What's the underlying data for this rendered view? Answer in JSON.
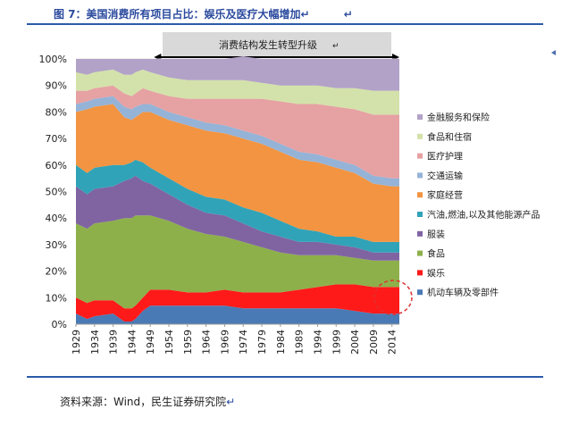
{
  "header": {
    "title": "图 7：美国消费所有项目占比：娱乐及医疗大幅增加",
    "mark1": "↵",
    "mark2": "↵"
  },
  "annotation": {
    "text": "消费结构发生转型升级",
    "mark": "↵",
    "span_from": 1950,
    "span_to": 2016
  },
  "source": {
    "text": "资料来源：Wind，民生证券研究院",
    "mark": "↵"
  },
  "colors": {
    "header_blue": "#2b4a9e",
    "rule_blue": "#2b5aa8",
    "highlight_red": "#e03030"
  },
  "chart_data": {
    "type": "area",
    "stacked": true,
    "percent": true,
    "x_ticks": [
      "1929",
      "1934",
      "1939",
      "1944",
      "1949",
      "1954",
      "1959",
      "1964",
      "1969",
      "1974",
      "1979",
      "1984",
      "1989",
      "1994",
      "1999",
      "2004",
      "2009",
      "2014"
    ],
    "y_ticks": [
      "0%",
      "10%",
      "20%",
      "30%",
      "40%",
      "50%",
      "60%",
      "70%",
      "80%",
      "90%",
      "100%"
    ],
    "ylim": [
      0,
      100
    ],
    "xlim": [
      1929,
      2016
    ],
    "legend_position": "right",
    "x": [
      1929,
      1932,
      1934,
      1939,
      1942,
      1944,
      1945,
      1947,
      1949,
      1954,
      1959,
      1964,
      1969,
      1974,
      1979,
      1984,
      1989,
      1994,
      1999,
      2004,
      2009,
      2014,
      2016
    ],
    "series": [
      {
        "name": "机动车辆及零部件",
        "color": "#4a7ab5",
        "values": [
          4,
          2,
          3,
          4,
          1,
          1,
          2,
          5,
          7,
          7,
          7,
          7,
          7,
          6,
          6,
          6,
          6,
          6,
          6,
          5,
          4,
          4,
          4
        ]
      },
      {
        "name": "娱乐",
        "color": "#ff1a1a",
        "values": [
          6,
          6,
          6,
          5,
          5,
          5,
          5,
          5,
          6,
          6,
          5,
          5,
          6,
          6,
          6,
          6,
          7,
          8,
          9,
          10,
          10,
          10,
          10
        ]
      },
      {
        "name": "食品",
        "color": "#8db04a",
        "values": [
          28,
          28,
          29,
          30,
          34,
          34,
          34,
          31,
          28,
          26,
          24,
          22,
          20,
          19,
          17,
          15,
          13,
          12,
          11,
          10,
          10,
          10,
          10
        ]
      },
      {
        "name": "服装",
        "color": "#8064a2",
        "values": [
          14,
          13,
          13,
          13,
          14,
          15,
          15,
          13,
          12,
          10,
          9,
          8,
          8,
          7,
          6,
          6,
          5,
          5,
          4,
          4,
          3,
          3,
          3
        ]
      },
      {
        "name": "汽油,燃油,以及其他能源产品",
        "color": "#31a3b8",
        "values": [
          8,
          8,
          8,
          8,
          6,
          6,
          6,
          7,
          6,
          6,
          6,
          6,
          6,
          6,
          7,
          6,
          5,
          4,
          3,
          4,
          4,
          4,
          4
        ]
      },
      {
        "name": "家庭经营",
        "color": "#f29441",
        "values": [
          20,
          24,
          23,
          23,
          18,
          16,
          16,
          19,
          21,
          22,
          24,
          25,
          25,
          26,
          26,
          26,
          26,
          26,
          26,
          24,
          22,
          21,
          21
        ]
      },
      {
        "name": "交通运输",
        "color": "#95b3d7",
        "values": [
          3,
          3,
          3,
          3,
          4,
          4,
          4,
          3,
          3,
          3,
          3,
          3,
          3,
          3,
          3,
          3,
          3,
          3,
          3,
          3,
          3,
          3,
          3
        ]
      },
      {
        "name": "医疗护理",
        "color": "#e6a1a3",
        "values": [
          5,
          4,
          4,
          4,
          5,
          5,
          5,
          6,
          5,
          6,
          7,
          9,
          10,
          12,
          14,
          16,
          18,
          19,
          20,
          21,
          23,
          24,
          24
        ]
      },
      {
        "name": "食品和住宿",
        "color": "#d3e2aa",
        "values": [
          7,
          6,
          6,
          6,
          7,
          8,
          8,
          7,
          7,
          7,
          7,
          7,
          7,
          7,
          6,
          6,
          7,
          7,
          7,
          8,
          9,
          9,
          9
        ]
      },
      {
        "name": "金融服务和保险",
        "color": "#b2a2c7",
        "values": [
          5,
          6,
          5,
          4,
          6,
          6,
          5,
          4,
          5,
          7,
          8,
          8,
          8,
          9,
          9,
          10,
          10,
          10,
          11,
          11,
          12,
          12,
          12
        ]
      }
    ]
  }
}
